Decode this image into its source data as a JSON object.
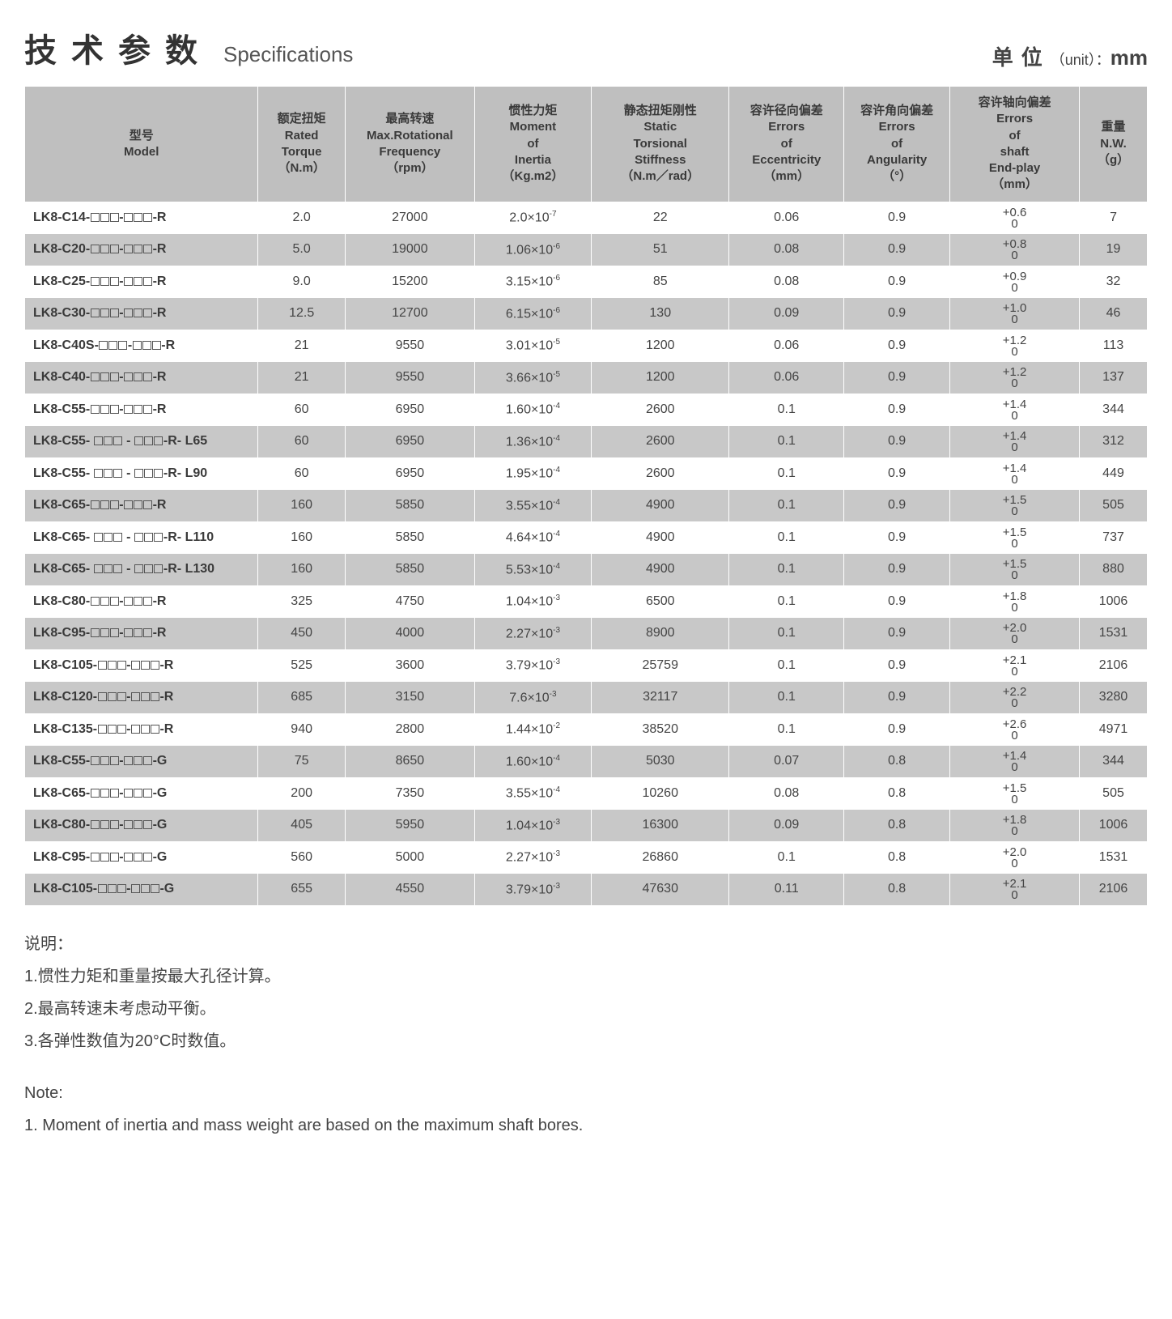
{
  "header": {
    "title_cn": "技术参数",
    "title_en": "Specifications",
    "unit_cn": "单位",
    "unit_paren": "（unit）：",
    "unit_val": "mm"
  },
  "columns": [
    {
      "cn": "型号",
      "en": "Model",
      "u": ""
    },
    {
      "cn": "额定扭矩",
      "en": "Rated Torque",
      "u": "（N.m）"
    },
    {
      "cn": "最高转速",
      "en": "Max.Rotational Frequency",
      "u": "（rpm）"
    },
    {
      "cn": "惯性力矩",
      "en": "Moment of Inertia",
      "u": "（Kg.m2）"
    },
    {
      "cn": "静态扭矩刚性",
      "en": "Static Torsional Stiffness",
      "u": "（N.m／rad）"
    },
    {
      "cn": "容许径向偏差",
      "en": "Errors of Eccentricity",
      "u": "（mm）"
    },
    {
      "cn": "容许角向偏差",
      "en": "Errors of Angularity",
      "u": "（°）"
    },
    {
      "cn": "容许轴向偏差",
      "en": "Errors of shaft End-play",
      "u": "（mm）"
    },
    {
      "cn": "重量",
      "en": "N.W.",
      "u": "（g）"
    }
  ],
  "rows": [
    {
      "shade": false,
      "model": "LK8-C14-",
      "suffix": "-R",
      "torque": "2.0",
      "rpm": "27000",
      "inertia_m": "2.0",
      "inertia_e": "-7",
      "stiff": "22",
      "ecc": "0.06",
      "ang": "0.9",
      "end": "+0.6",
      "nw": "7"
    },
    {
      "shade": true,
      "model": "LK8-C20-",
      "suffix": "-R",
      "torque": "5.0",
      "rpm": "19000",
      "inertia_m": "1.06",
      "inertia_e": "-6",
      "stiff": "51",
      "ecc": "0.08",
      "ang": "0.9",
      "end": "+0.8",
      "nw": "19"
    },
    {
      "shade": false,
      "model": "LK8-C25-",
      "suffix": "-R",
      "torque": "9.0",
      "rpm": "15200",
      "inertia_m": "3.15",
      "inertia_e": "-6",
      "stiff": "85",
      "ecc": "0.08",
      "ang": "0.9",
      "end": "+0.9",
      "nw": "32"
    },
    {
      "shade": true,
      "model": "LK8-C30-",
      "suffix": "-R",
      "torque": "12.5",
      "rpm": "12700",
      "inertia_m": "6.15",
      "inertia_e": "-6",
      "stiff": "130",
      "ecc": "0.09",
      "ang": "0.9",
      "end": "+1.0",
      "nw": "46"
    },
    {
      "shade": false,
      "model": "LK8-C40S-",
      "suffix": "-R",
      "torque": "21",
      "rpm": "9550",
      "inertia_m": "3.01",
      "inertia_e": "-5",
      "stiff": "1200",
      "ecc": "0.06",
      "ang": "0.9",
      "end": "+1.2",
      "nw": "113"
    },
    {
      "shade": true,
      "model": "LK8-C40-",
      "suffix": "-R",
      "torque": "21",
      "rpm": "9550",
      "inertia_m": "3.66",
      "inertia_e": "-5",
      "stiff": "1200",
      "ecc": "0.06",
      "ang": "0.9",
      "end": "+1.2",
      "nw": "137"
    },
    {
      "shade": false,
      "model": "LK8-C55-",
      "suffix": "-R",
      "torque": "60",
      "rpm": "6950",
      "inertia_m": "1.60",
      "inertia_e": "-4",
      "stiff": "2600",
      "ecc": "0.1",
      "ang": "0.9",
      "end": "+1.4",
      "nw": "344"
    },
    {
      "shade": true,
      "model": "LK8-C55- ",
      "suffix": "-R- L65",
      "sp": true,
      "torque": "60",
      "rpm": "6950",
      "inertia_m": "1.36",
      "inertia_e": "-4",
      "stiff": "2600",
      "ecc": "0.1",
      "ang": "0.9",
      "end": "+1.4",
      "nw": "312"
    },
    {
      "shade": false,
      "model": "LK8-C55- ",
      "suffix": "-R- L90",
      "sp": true,
      "torque": "60",
      "rpm": "6950",
      "inertia_m": "1.95",
      "inertia_e": "-4",
      "stiff": "2600",
      "ecc": "0.1",
      "ang": "0.9",
      "end": "+1.4",
      "nw": "449"
    },
    {
      "shade": true,
      "model": "LK8-C65-",
      "suffix": "-R",
      "torque": "160",
      "rpm": "5850",
      "inertia_m": "3.55",
      "inertia_e": "-4",
      "stiff": "4900",
      "ecc": "0.1",
      "ang": "0.9",
      "end": "+1.5",
      "nw": "505"
    },
    {
      "shade": false,
      "model": "LK8-C65- ",
      "suffix": "-R- L110",
      "sp": true,
      "torque": "160",
      "rpm": "5850",
      "inertia_m": "4.64",
      "inertia_e": "-4",
      "stiff": "4900",
      "ecc": "0.1",
      "ang": "0.9",
      "end": "+1.5",
      "nw": "737"
    },
    {
      "shade": true,
      "model": "LK8-C65- ",
      "suffix": "-R- L130",
      "sp": true,
      "torque": "160",
      "rpm": "5850",
      "inertia_m": "5.53",
      "inertia_e": "-4",
      "stiff": "4900",
      "ecc": "0.1",
      "ang": "0.9",
      "end": "+1.5",
      "nw": "880"
    },
    {
      "shade": false,
      "model": "LK8-C80-",
      "suffix": "-R",
      "torque": "325",
      "rpm": "4750",
      "inertia_m": "1.04",
      "inertia_e": "-3",
      "stiff": "6500",
      "ecc": "0.1",
      "ang": "0.9",
      "end": "+1.8",
      "nw": "1006"
    },
    {
      "shade": true,
      "model": "LK8-C95-",
      "suffix": "-R",
      "torque": "450",
      "rpm": "4000",
      "inertia_m": "2.27",
      "inertia_e": "-3",
      "stiff": "8900",
      "ecc": "0.1",
      "ang": "0.9",
      "end": "+2.0",
      "nw": "1531"
    },
    {
      "shade": false,
      "model": "LK8-C105-",
      "suffix": "-R",
      "torque": "525",
      "rpm": "3600",
      "inertia_m": "3.79",
      "inertia_e": "-3",
      "stiff": "25759",
      "ecc": "0.1",
      "ang": "0.9",
      "end": "+2.1",
      "nw": "2106"
    },
    {
      "shade": true,
      "model": "LK8-C120-",
      "suffix": "-R",
      "torque": "685",
      "rpm": "3150",
      "inertia_m": "7.6",
      "inertia_e": "-3",
      "stiff": "32117",
      "ecc": "0.1",
      "ang": "0.9",
      "end": "+2.2",
      "nw": "3280"
    },
    {
      "shade": false,
      "model": "LK8-C135-",
      "suffix": "-R",
      "torque": "940",
      "rpm": "2800",
      "inertia_m": "1.44",
      "inertia_e": "-2",
      "stiff": "38520",
      "ecc": "0.1",
      "ang": "0.9",
      "end": "+2.6",
      "nw": "4971"
    },
    {
      "shade": true,
      "model": "LK8-C55-",
      "suffix": "-G",
      "torque": "75",
      "rpm": "8650",
      "inertia_m": "1.60",
      "inertia_e": "-4",
      "stiff": "5030",
      "ecc": "0.07",
      "ang": "0.8",
      "end": "+1.4",
      "nw": "344"
    },
    {
      "shade": false,
      "model": "LK8-C65-",
      "suffix": "-G",
      "torque": "200",
      "rpm": "7350",
      "inertia_m": "3.55",
      "inertia_e": "-4",
      "stiff": "10260",
      "ecc": "0.08",
      "ang": "0.8",
      "end": "+1.5",
      "nw": "505"
    },
    {
      "shade": true,
      "model": "LK8-C80-",
      "suffix": "-G",
      "torque": "405",
      "rpm": "5950",
      "inertia_m": "1.04",
      "inertia_e": "-3",
      "stiff": "16300",
      "ecc": "0.09",
      "ang": "0.8",
      "end": "+1.8",
      "nw": "1006"
    },
    {
      "shade": false,
      "model": "LK8-C95-",
      "suffix": "-G",
      "torque": "560",
      "rpm": "5000",
      "inertia_m": "2.27",
      "inertia_e": "-3",
      "stiff": "26860",
      "ecc": "0.1",
      "ang": "0.8",
      "end": "+2.0",
      "nw": "1531"
    },
    {
      "shade": true,
      "model": "LK8-C105-",
      "suffix": "-G",
      "torque": "655",
      "rpm": "4550",
      "inertia_m": "3.79",
      "inertia_e": "-3",
      "stiff": "47630",
      "ecc": "0.11",
      "ang": "0.8",
      "end": "+2.1",
      "nw": "2106"
    }
  ],
  "notes": {
    "cn_head": "说明：",
    "cn": [
      "1.惯性力矩和重量按最大孔径计算。",
      "2.最高转速未考虑动平衡。",
      "3.各弹性数值为20°C时数值。"
    ],
    "en_head": "Note:",
    "en": [
      "1. Moment of inertia and mass  weight are  based on the maximum shaft bores."
    ]
  }
}
